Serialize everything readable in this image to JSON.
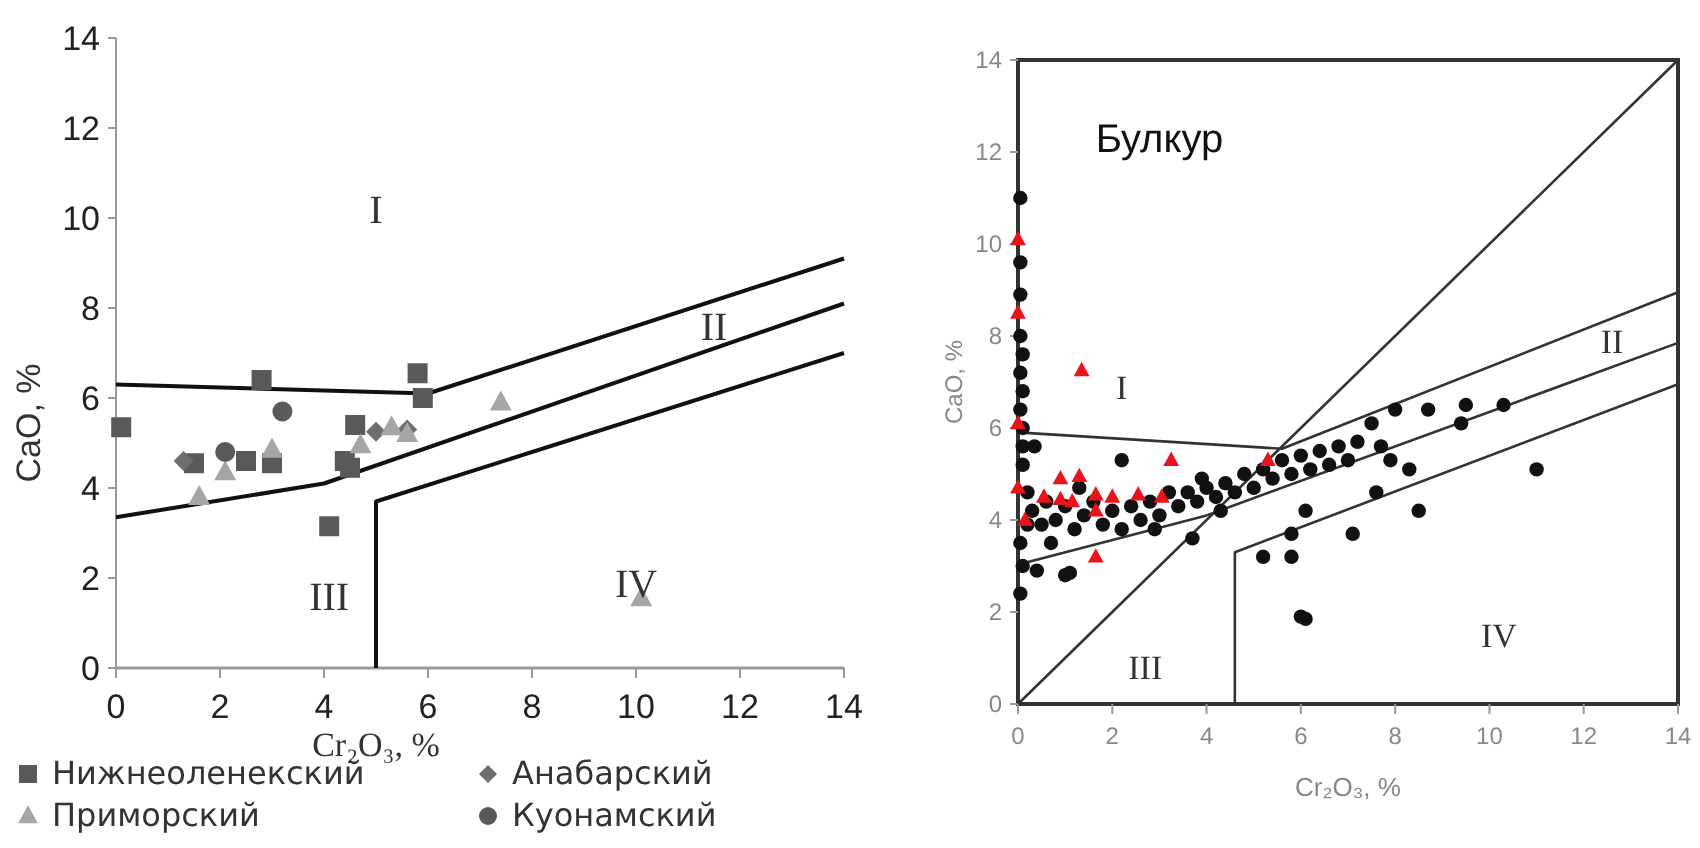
{
  "chart_data": [
    {
      "type": "scatter",
      "xlabel": "Cr₂O₃, %",
      "ylabel": "CaO, %",
      "xlim": [
        0,
        14
      ],
      "ylim": [
        0,
        14
      ],
      "xticks": [
        0,
        2,
        4,
        6,
        8,
        10,
        12,
        14
      ],
      "yticks": [
        0,
        2,
        4,
        6,
        8,
        10,
        12,
        14
      ],
      "legend": "bottom",
      "annotations": [
        "I",
        "II",
        "III",
        "IV"
      ],
      "series": [
        {
          "name": "Нижнеоленекский",
          "color": "#595959",
          "marker": "square",
          "x": [
            0.1,
            2.8,
            1.5,
            2.5,
            3.0,
            4.6,
            4.4,
            4.5,
            4.1,
            5.8,
            5.9
          ],
          "values": [
            5.35,
            6.4,
            4.55,
            4.6,
            4.55,
            5.4,
            4.6,
            4.45,
            3.15,
            6.55,
            6.0
          ]
        },
        {
          "name": "Анабарский",
          "color": "#6e6e6e",
          "marker": "diamond",
          "x": [
            1.3,
            5.0,
            5.6
          ],
          "values": [
            4.6,
            5.25,
            5.3
          ]
        },
        {
          "name": "Приморский",
          "color": "#a6a6a6",
          "marker": "triangle",
          "x": [
            1.6,
            2.1,
            3.0,
            4.7,
            5.3,
            5.6,
            7.4,
            10.1
          ],
          "values": [
            3.8,
            4.35,
            4.85,
            4.95,
            5.35,
            5.2,
            5.9,
            1.55
          ]
        },
        {
          "name": "Куонамский",
          "color": "#5a5a5a",
          "marker": "circle",
          "x": [
            3.2,
            2.1
          ],
          "values": [
            5.7,
            4.8
          ]
        },
        {
          "type": "line",
          "color": "#111111",
          "x": [
            0,
            6,
            14
          ],
          "values": [
            6.3,
            6.1,
            9.1
          ]
        },
        {
          "type": "line",
          "color": "#111111",
          "x": [
            0,
            4,
            14
          ],
          "values": [
            3.35,
            4.1,
            8.1
          ]
        },
        {
          "type": "line",
          "color": "#111111",
          "x": [
            5,
            5,
            14
          ],
          "values": [
            0,
            3.7,
            7.0
          ]
        }
      ]
    },
    {
      "type": "scatter",
      "xlabel": "Cr₂O₃, %",
      "ylabel": "CaO, %",
      "xlim": [
        0,
        14
      ],
      "ylim": [
        0,
        14
      ],
      "xticks": [
        0,
        2,
        4,
        6,
        8,
        10,
        12,
        14
      ],
      "yticks": [
        0,
        2,
        4,
        6,
        8,
        10,
        12,
        14
      ],
      "annotations": [
        "Булкур",
        "I",
        "II",
        "III",
        "IV"
      ],
      "series": [
        {
          "type": "line",
          "color": "#333333",
          "x": [
            0,
            14
          ],
          "values": [
            0,
            14
          ]
        },
        {
          "type": "line",
          "color": "#333333",
          "x": [
            0.07,
            5.6,
            14
          ],
          "values": [
            5.9,
            5.55,
            8.95
          ]
        },
        {
          "type": "line",
          "color": "#333333",
          "x": [
            0.07,
            4,
            14
          ],
          "values": [
            3.05,
            4.1,
            7.85
          ]
        },
        {
          "type": "line",
          "color": "#333333",
          "x": [
            4.6,
            4.6,
            14
          ],
          "values": [
            0,
            3.3,
            6.95
          ]
        },
        {
          "color": "#111111",
          "marker": "circle",
          "x": [
            0.05,
            0.05,
            0.05,
            0.05,
            0.1,
            0.05,
            0.1,
            0.05,
            0.1,
            0.1,
            0.1,
            0.05,
            0.1,
            0.05,
            0.35,
            0.3,
            0.5,
            0.6,
            0.8,
            1.0,
            1.2,
            1.4,
            1.6,
            1.8,
            2.0,
            2.2,
            2.4,
            2.6,
            2.8,
            3.0,
            3.2,
            3.4,
            3.6,
            3.8,
            4.0,
            4.2,
            4.4,
            4.6,
            4.8,
            5.0,
            5.2,
            5.4,
            5.6,
            5.8,
            6.0,
            6.2,
            6.4,
            6.6,
            6.8,
            7.0,
            7.2,
            7.5,
            7.7,
            7.9,
            8.0,
            8.7,
            9.5,
            10.3,
            9.4,
            8.3,
            7.6,
            6.1,
            5.8,
            7.1,
            5.8,
            5.2,
            8.5,
            11.0,
            6.0,
            6.1,
            3.7,
            0.4,
            1.0,
            1.1,
            0.7,
            2.2,
            0.2,
            0.2,
            1.3,
            2.9,
            4.3,
            3.9
          ],
          "values": [
            11.0,
            9.6,
            8.9,
            8.0,
            7.6,
            7.2,
            6.8,
            6.4,
            6.0,
            5.6,
            5.2,
            3.5,
            3.0,
            2.4,
            5.6,
            4.2,
            3.9,
            4.4,
            4.0,
            4.3,
            3.8,
            4.1,
            4.4,
            3.9,
            4.2,
            3.8,
            4.3,
            4.0,
            4.4,
            4.1,
            4.6,
            4.3,
            4.6,
            4.4,
            4.7,
            4.5,
            4.8,
            4.6,
            5.0,
            4.7,
            5.1,
            4.9,
            5.3,
            5.0,
            5.4,
            5.1,
            5.5,
            5.2,
            5.6,
            5.3,
            5.7,
            6.1,
            5.6,
            5.3,
            6.4,
            6.4,
            6.5,
            6.5,
            6.1,
            5.1,
            4.6,
            4.2,
            3.7,
            3.7,
            3.2,
            3.2,
            4.2,
            5.1,
            1.9,
            1.85,
            3.6,
            2.9,
            2.8,
            2.85,
            3.5,
            5.3,
            4.6,
            3.9,
            4.7,
            3.8,
            4.2,
            4.9
          ]
        },
        {
          "color": "#e8141c",
          "marker": "triangle",
          "x": [
            0,
            0,
            0,
            0,
            0.15,
            1.35,
            0.9,
            1.3,
            1.65,
            1.65,
            0.9,
            2.0,
            2.55,
            3.05,
            3.25,
            1.65,
            5.3,
            0.55,
            1.15
          ],
          "values": [
            10.1,
            8.5,
            6.1,
            4.7,
            4.0,
            7.25,
            4.9,
            4.95,
            4.55,
            4.2,
            4.45,
            4.5,
            4.55,
            4.5,
            5.3,
            3.2,
            5.3,
            4.5,
            4.4
          ]
        }
      ]
    }
  ]
}
